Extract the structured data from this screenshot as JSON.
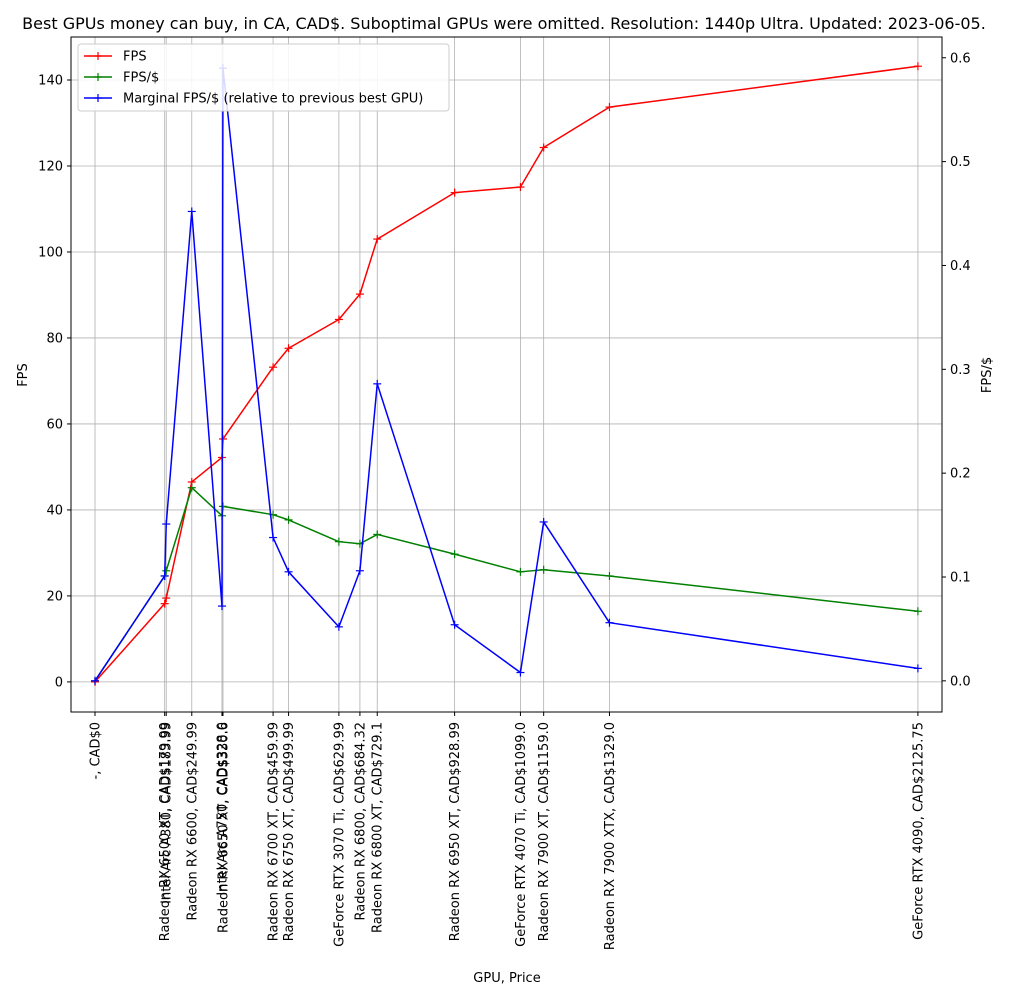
{
  "chart_data": {
    "type": "line",
    "title": "Best GPUs money can buy, in CA, CAD$. Suboptimal GPUs were omitted. Resolution: 1440p Ultra. Updated: 2023-06-05.",
    "xlabel": "GPU, Price",
    "ylabel_left": "FPS",
    "ylabel_right": "FPS/$",
    "grid": true,
    "legend_position": "top-left",
    "x_prices": [
      0,
      179.99,
      183.99,
      249.99,
      328.0,
      330.6,
      459.99,
      499.99,
      629.99,
      684.32,
      729.1,
      928.99,
      1099.0,
      1159.0,
      1329.0,
      2125.75
    ],
    "categories": [
      "-, CAD$0",
      "Radeon RX 6500 XT, CAD$179.99",
      "Intel Arc A380, CAD$183.99",
      "Radeon RX 6600, CAD$249.99",
      "Intel Arc A750, CAD$328.0",
      "Radeon RX 6650 XT, CAD$330.6",
      "Radeon RX 6700 XT, CAD$459.99",
      "Radeon RX 6750 XT, CAD$499.99",
      "GeForce RTX 3070 Ti, CAD$629.99",
      "Radeon RX 6800, CAD$684.32",
      "Radeon RX 6800 XT, CAD$729.1",
      "Radeon RX 6950 XT, CAD$928.99",
      "GeForce RTX 4070 Ti, CAD$1099.0",
      "Radeon RX 7900 XT, CAD$1159.0",
      "Radeon RX 7900 XTX, CAD$1329.0",
      "GeForce RTX 4090, CAD$2125.75"
    ],
    "y_left_range": [
      -7,
      150
    ],
    "y_left_ticks": [
      0,
      20,
      40,
      60,
      80,
      100,
      120,
      140
    ],
    "y_right_range": [
      -0.03,
      0.62
    ],
    "y_right_ticks": [
      0.0,
      0.1,
      0.2,
      0.3,
      0.4,
      0.5,
      0.6
    ],
    "series": [
      {
        "name": "FPS",
        "color": "#ff0000",
        "axis": "left",
        "values": [
          0,
          18.2,
          19.5,
          46.5,
          52.2,
          56.5,
          73.2,
          77.6,
          84.3,
          90.2,
          103.0,
          113.8,
          115.1,
          124.3,
          133.7,
          143.2
        ]
      },
      {
        "name": "FPS/$",
        "color": "#008000",
        "axis": "right",
        "values": [
          0,
          0.101,
          0.106,
          0.186,
          0.159,
          0.168,
          0.16,
          0.155,
          0.134,
          0.132,
          0.141,
          0.122,
          0.105,
          0.107,
          0.101,
          0.067
        ]
      },
      {
        "name": "Marginal FPS/$ (relative to previous best GPU)",
        "color": "#0000ff",
        "axis": "right",
        "values": [
          0,
          0.101,
          0.151,
          0.452,
          0.072,
          0.59,
          0.138,
          0.105,
          0.052,
          0.106,
          0.286,
          0.054,
          0.008,
          0.153,
          0.056,
          0.012
        ]
      }
    ]
  }
}
